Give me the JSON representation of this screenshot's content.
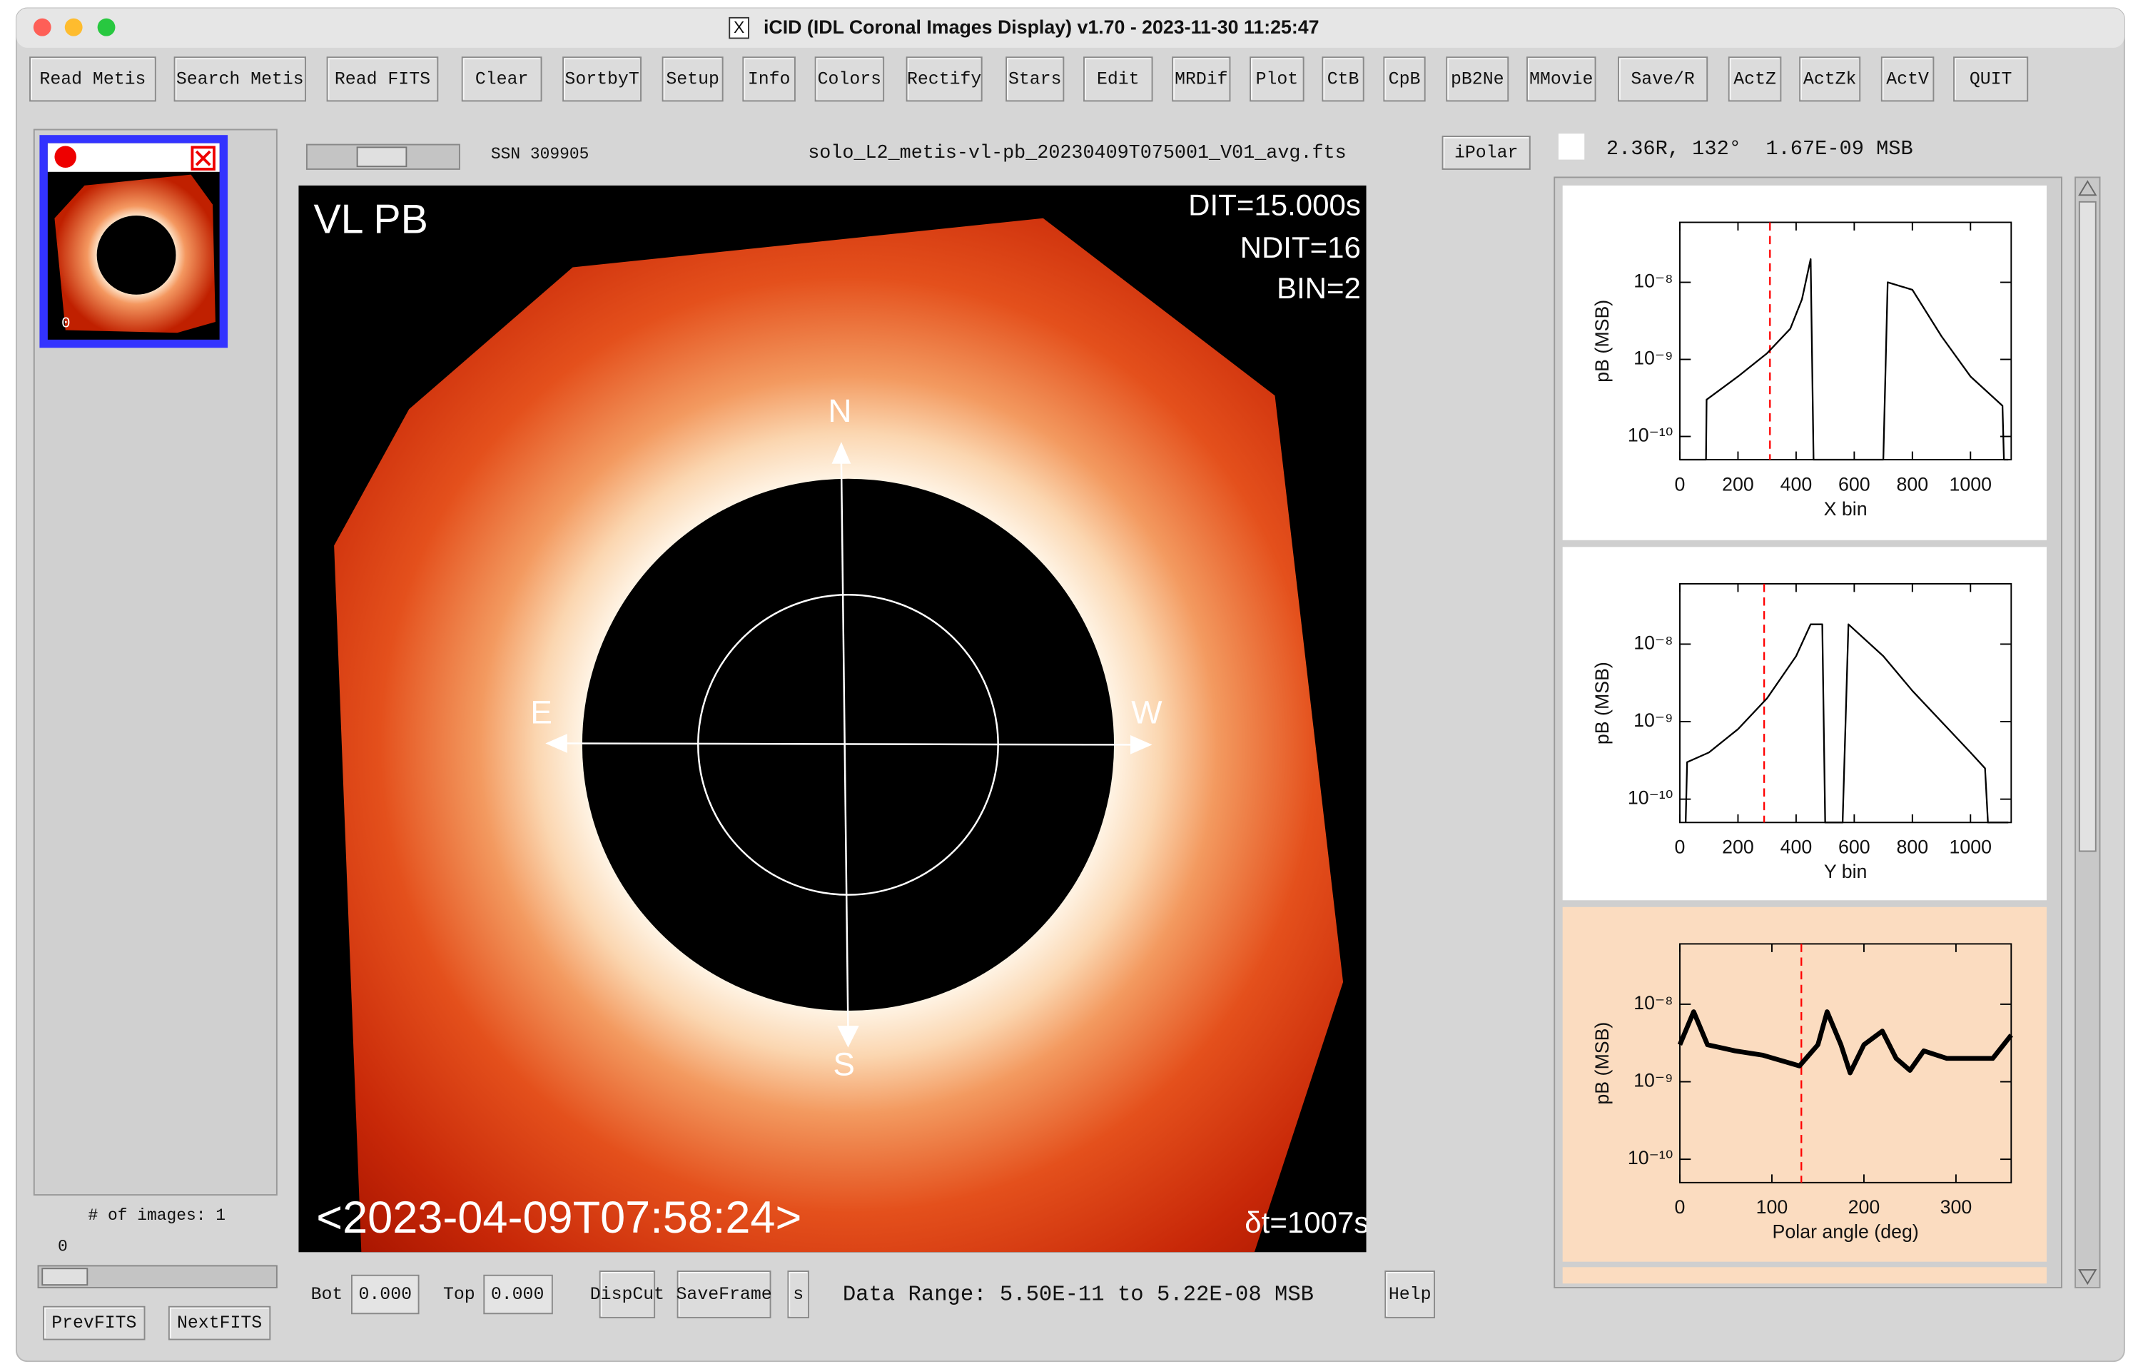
{
  "window": {
    "title": "iCID (IDL Coronal Images Display) v1.70 - 2023-11-30 11:25:47"
  },
  "toolbar": [
    "Read Metis",
    "Search Metis",
    "Read FITS",
    "Clear",
    "SortbyT",
    "Setup",
    "Info",
    "Colors",
    "Rectify",
    "Stars",
    "Edit",
    "MRDif",
    "Plot",
    "CtB",
    "CpB",
    "pB2Ne",
    "MMovie",
    "Save/R",
    "ActZ",
    "ActZk",
    "ActV",
    "QUIT"
  ],
  "thumbnail": {
    "index": "0"
  },
  "left_panel": {
    "image_count": "# of images: 1",
    "slider_value": "0",
    "prev": "PrevFITS",
    "next": "NextFITS"
  },
  "image_header": {
    "ssn": "SSN 309905",
    "filename": "solo_L2_metis-vl-pb_20230409T075001_V01_avg.fts",
    "button": "iPolar",
    "cursor_readout": "2.36R, 132°  1.67E-09 MSB"
  },
  "image": {
    "label": "VL PB",
    "dit": "DIT=15.000s",
    "ndit": "NDIT=16",
    "bin": "BIN=2",
    "timestamp": "<2023-04-09T07:58:24>",
    "dt": "δt=1007s",
    "directions": {
      "north": "N",
      "south": "S",
      "east": "E",
      "west": "W"
    }
  },
  "bottom_bar": {
    "bot_label": "Bot",
    "bot_value": "0.000",
    "top_label": "Top",
    "top_value": "0.000",
    "dispcut": "DispCut",
    "saveframe": "SaveFrame",
    "s": "s",
    "data_range": "Data Range: 5.50E-11 to 5.22E-08 MSB",
    "help": "Help"
  },
  "plots": [
    {
      "type": "line",
      "ylabel": "pB (MSB)",
      "xlabel": "X bin",
      "log_y": true,
      "color": "#000000",
      "cursor_color": "#ff0000",
      "cursor_x": 310,
      "xlim": [
        0,
        1140
      ],
      "ylim": [
        5e-11,
        6e-08
      ],
      "xticks": [
        0,
        200,
        400,
        600,
        800,
        1000
      ],
      "yticks": [
        {
          "value": 1e-10,
          "label": "10⁻¹⁰"
        },
        {
          "value": 1e-09,
          "label": "10⁻⁹"
        },
        {
          "value": 1e-08,
          "label": "10⁻⁸"
        }
      ],
      "x": [
        0,
        90,
        92,
        200,
        300,
        380,
        420,
        450,
        460,
        700,
        715,
        800,
        900,
        1000,
        1110,
        1115,
        1130
      ],
      "values": [
        5e-11,
        5e-11,
        3e-10,
        6e-10,
        1.2e-09,
        2.5e-09,
        6e-09,
        2e-08,
        5e-11,
        5e-11,
        1e-08,
        8e-09,
        2e-09,
        6e-10,
        2.5e-10,
        5e-11,
        5e-11
      ]
    },
    {
      "type": "line",
      "ylabel": "pB (MSB)",
      "xlabel": "Y bin",
      "log_y": true,
      "color": "#000000",
      "cursor_color": "#ff0000",
      "cursor_x": 290,
      "xlim": [
        0,
        1140
      ],
      "ylim": [
        5e-11,
        6e-08
      ],
      "xticks": [
        0,
        200,
        400,
        600,
        800,
        1000
      ],
      "yticks": [
        {
          "value": 1e-10,
          "label": "10⁻¹⁰"
        },
        {
          "value": 1e-09,
          "label": "10⁻⁹"
        },
        {
          "value": 1e-08,
          "label": "10⁻⁸"
        }
      ],
      "x": [
        20,
        25,
        100,
        200,
        300,
        400,
        450,
        490,
        500,
        560,
        580,
        700,
        800,
        900,
        1000,
        1050,
        1060,
        1130
      ],
      "values": [
        5e-11,
        3e-10,
        4e-10,
        8e-10,
        2e-09,
        7e-09,
        1.8e-08,
        1.8e-08,
        5e-11,
        5e-11,
        1.8e-08,
        7e-09,
        2.5e-09,
        1e-09,
        4e-10,
        2.5e-10,
        5e-11,
        5e-11
      ]
    },
    {
      "type": "line",
      "ylabel": "pB (MSB)",
      "xlabel": "Polar angle (deg)",
      "log_y": true,
      "color": "#000000",
      "cursor_color": "#ff0000",
      "cursor_x": 132,
      "xlim": [
        0,
        360
      ],
      "ylim": [
        5e-11,
        6e-08
      ],
      "xticks": [
        0,
        100,
        200,
        300
      ],
      "yticks": [
        {
          "value": 1e-10,
          "label": "10⁻¹⁰"
        },
        {
          "value": 1e-09,
          "label": "10⁻⁹"
        },
        {
          "value": 1e-08,
          "label": "10⁻⁸"
        }
      ],
      "x": [
        0,
        15,
        30,
        60,
        90,
        130,
        150,
        160,
        175,
        185,
        200,
        220,
        235,
        250,
        265,
        290,
        340,
        360
      ],
      "values": [
        3e-09,
        8e-09,
        3e-09,
        2.5e-09,
        2.2e-09,
        1.6e-09,
        3e-09,
        8e-09,
        3e-09,
        1.3e-09,
        3e-09,
        4.5e-09,
        2e-09,
        1.4e-09,
        2.5e-09,
        2e-09,
        2e-09,
        4e-09
      ]
    }
  ]
}
